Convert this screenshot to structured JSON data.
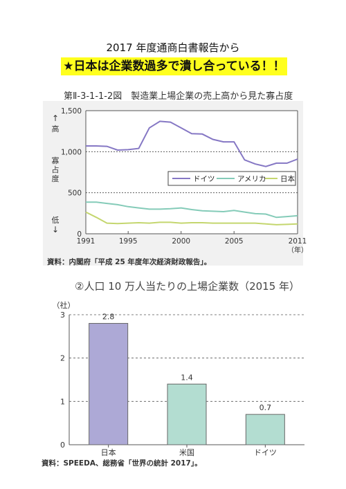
{
  "header": {
    "title": "2017 年度通商白書報告から",
    "highlight": "★日本は企業数過多で潰し合っている！！"
  },
  "figure1": {
    "caption": "第Ⅱ-3-1-1-2図　製造業上場企業の売上高から見た寡占度",
    "source": "資料：内閣府「平成 25 年度年次経済財政報告」。"
  },
  "figure2": {
    "caption": "②人口 10 万人当たりの上場企業数（2015 年）",
    "source": "資料：SPEEDA、総務省「世界の統計 2017」。"
  },
  "chart_data": [
    {
      "type": "line",
      "x_ticks": [
        "1991",
        "1995",
        "2000",
        "2005",
        "2011"
      ],
      "x_unit": "（年）",
      "y_ticks": [
        "0",
        "500",
        "1,000",
        "1,500"
      ],
      "ylim": [
        0,
        1500
      ],
      "xlim": [
        1991,
        2011
      ],
      "ylabel": "寡占度",
      "y_top_label": "高",
      "y_bottom_label": "低",
      "y_top_arrow": "↑",
      "y_bottom_arrow": "↓",
      "grid": true,
      "legend_position": "right",
      "x": [
        1991,
        1992,
        1993,
        1994,
        1995,
        1996,
        1997,
        1998,
        1999,
        2000,
        2001,
        2002,
        2003,
        2004,
        2005,
        2006,
        2007,
        2008,
        2009,
        2010,
        2011
      ],
      "series": [
        {
          "name": "ドイツ",
          "color": "#8577c4",
          "values": [
            1070,
            1070,
            1065,
            1020,
            1025,
            1040,
            1290,
            1370,
            1360,
            1290,
            1220,
            1215,
            1150,
            1120,
            1120,
            900,
            850,
            820,
            860,
            860,
            910
          ]
        },
        {
          "name": "アメリカ",
          "color": "#84cbb8",
          "values": [
            385,
            385,
            370,
            355,
            330,
            315,
            300,
            300,
            305,
            315,
            295,
            280,
            275,
            270,
            285,
            265,
            245,
            240,
            200,
            210,
            220
          ]
        },
        {
          "name": "日本",
          "color": "#c4d66e",
          "values": [
            265,
            200,
            130,
            125,
            130,
            135,
            130,
            140,
            140,
            130,
            135,
            135,
            130,
            130,
            130,
            130,
            130,
            120,
            110,
            115,
            120
          ]
        }
      ]
    },
    {
      "type": "bar",
      "y_unit": "（社）",
      "ylim": [
        0,
        3
      ],
      "y_ticks": [
        "0",
        "1",
        "2",
        "3"
      ],
      "categories": [
        "日本",
        "米国",
        "ドイツ"
      ],
      "values": [
        2.8,
        1.4,
        0.7
      ],
      "value_labels": [
        "2.8",
        "1.4",
        "0.7"
      ],
      "colors": [
        "#ada9d6",
        "#b3ddd1",
        "#b3ddd1"
      ]
    }
  ]
}
